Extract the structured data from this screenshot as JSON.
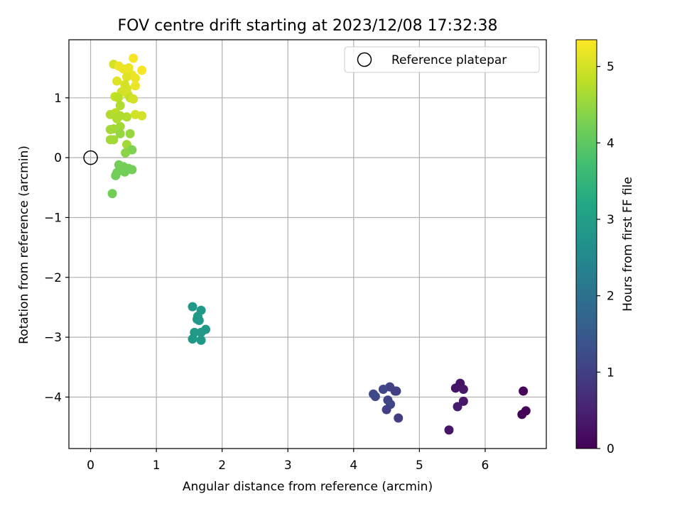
{
  "chart_data": {
    "type": "scatter",
    "title": "FOV centre drift starting at 2023/12/08 17:32:38",
    "xlabel": "Angular distance from reference (arcmin)",
    "ylabel": "Rotation from reference (arcmin)",
    "xlim": [
      -0.33,
      6.93
    ],
    "ylim": [
      -4.86,
      1.97
    ],
    "xticks": [
      0,
      1,
      2,
      3,
      4,
      5,
      6
    ],
    "yticks": [
      -4,
      -3,
      -2,
      -1,
      0,
      1
    ],
    "grid": true,
    "legend": {
      "placement": "top-right",
      "entries": [
        "Reference platepar"
      ]
    },
    "reference_point": {
      "x": 0,
      "y": 0
    },
    "colorbar": {
      "label": "Hours from first FF file",
      "range": [
        0,
        5.35
      ],
      "ticks": [
        0,
        1,
        2,
        3,
        4,
        5
      ],
      "colormap": "viridis"
    },
    "series": [
      {
        "points": [
          {
            "x": 6.58,
            "y": -3.9,
            "c": 0.05
          },
          {
            "x": 6.62,
            "y": -4.23,
            "c": 0.08
          },
          {
            "x": 6.56,
            "y": -4.29,
            "c": 0.03
          },
          {
            "x": 5.62,
            "y": -3.77,
            "c": 0.3
          },
          {
            "x": 5.55,
            "y": -3.85,
            "c": 0.3
          },
          {
            "x": 5.67,
            "y": -3.87,
            "c": 0.35
          },
          {
            "x": 5.67,
            "y": -4.07,
            "c": 0.35
          },
          {
            "x": 5.58,
            "y": -4.16,
            "c": 0.4
          },
          {
            "x": 5.45,
            "y": -4.55,
            "c": 0.3
          },
          {
            "x": 4.3,
            "y": -3.95,
            "c": 1.15
          },
          {
            "x": 4.33,
            "y": -3.99,
            "c": 1.15
          },
          {
            "x": 4.45,
            "y": -3.87,
            "c": 1.1
          },
          {
            "x": 4.55,
            "y": -3.83,
            "c": 1.05
          },
          {
            "x": 4.63,
            "y": -3.9,
            "c": 1.0
          },
          {
            "x": 4.65,
            "y": -3.9,
            "c": 1.0
          },
          {
            "x": 4.52,
            "y": -4.05,
            "c": 1.05
          },
          {
            "x": 4.56,
            "y": -4.12,
            "c": 1.1
          },
          {
            "x": 4.5,
            "y": -4.21,
            "c": 1.0
          },
          {
            "x": 4.68,
            "y": -4.35,
            "c": 0.95
          },
          {
            "x": 1.55,
            "y": -2.49,
            "c": 2.85
          },
          {
            "x": 1.68,
            "y": -2.55,
            "c": 2.85
          },
          {
            "x": 1.63,
            "y": -2.65,
            "c": 2.85
          },
          {
            "x": 1.62,
            "y": -2.7,
            "c": 2.85
          },
          {
            "x": 1.65,
            "y": -2.72,
            "c": 2.85
          },
          {
            "x": 1.75,
            "y": -2.87,
            "c": 2.85
          },
          {
            "x": 1.58,
            "y": -2.92,
            "c": 2.85
          },
          {
            "x": 1.68,
            "y": -2.92,
            "c": 2.85
          },
          {
            "x": 1.55,
            "y": -3.03,
            "c": 2.85
          },
          {
            "x": 1.68,
            "y": -3.05,
            "c": 2.85
          },
          {
            "x": 0.35,
            "y": 1.56,
            "c": 5.0
          },
          {
            "x": 0.43,
            "y": 1.53,
            "c": 5.2
          },
          {
            "x": 0.5,
            "y": 1.48,
            "c": 5.2
          },
          {
            "x": 0.58,
            "y": 1.5,
            "c": 5.2
          },
          {
            "x": 0.65,
            "y": 1.66,
            "c": 5.3
          },
          {
            "x": 0.78,
            "y": 1.46,
            "c": 5.3
          },
          {
            "x": 0.63,
            "y": 1.38,
            "c": 5.2
          },
          {
            "x": 0.55,
            "y": 1.35,
            "c": 5.1
          },
          {
            "x": 0.68,
            "y": 1.33,
            "c": 5.2
          },
          {
            "x": 0.4,
            "y": 1.28,
            "c": 5.1
          },
          {
            "x": 0.52,
            "y": 1.22,
            "c": 5.0
          },
          {
            "x": 0.68,
            "y": 1.2,
            "c": 5.2
          },
          {
            "x": 0.55,
            "y": 1.15,
            "c": 5.0
          },
          {
            "x": 0.47,
            "y": 1.1,
            "c": 5.0
          },
          {
            "x": 0.57,
            "y": 1.05,
            "c": 5.0
          },
          {
            "x": 0.37,
            "y": 1.02,
            "c": 4.9
          },
          {
            "x": 0.42,
            "y": 1.0,
            "c": 4.8
          },
          {
            "x": 0.6,
            "y": 1.0,
            "c": 4.9
          },
          {
            "x": 0.65,
            "y": 0.98,
            "c": 5.0
          },
          {
            "x": 0.45,
            "y": 0.87,
            "c": 4.7
          },
          {
            "x": 0.38,
            "y": 0.75,
            "c": 4.8
          },
          {
            "x": 0.3,
            "y": 0.72,
            "c": 4.7
          },
          {
            "x": 0.45,
            "y": 0.7,
            "c": 4.7
          },
          {
            "x": 0.55,
            "y": 0.68,
            "c": 4.7
          },
          {
            "x": 0.68,
            "y": 0.72,
            "c": 5.0
          },
          {
            "x": 0.78,
            "y": 0.7,
            "c": 5.0
          },
          {
            "x": 0.4,
            "y": 0.65,
            "c": 4.7
          },
          {
            "x": 0.45,
            "y": 0.52,
            "c": 4.6
          },
          {
            "x": 0.3,
            "y": 0.47,
            "c": 4.6
          },
          {
            "x": 0.35,
            "y": 0.48,
            "c": 4.6
          },
          {
            "x": 0.45,
            "y": 0.4,
            "c": 4.5
          },
          {
            "x": 0.6,
            "y": 0.4,
            "c": 4.5
          },
          {
            "x": 0.3,
            "y": 0.3,
            "c": 4.6
          },
          {
            "x": 0.35,
            "y": 0.3,
            "c": 4.6
          },
          {
            "x": 0.55,
            "y": 0.22,
            "c": 4.6
          },
          {
            "x": 0.63,
            "y": 0.13,
            "c": 4.3
          },
          {
            "x": 0.53,
            "y": 0.08,
            "c": 4.4
          },
          {
            "x": 0.43,
            "y": -0.12,
            "c": 4.2
          },
          {
            "x": 0.5,
            "y": -0.15,
            "c": 4.2
          },
          {
            "x": 0.58,
            "y": -0.18,
            "c": 4.2
          },
          {
            "x": 0.48,
            "y": -0.2,
            "c": 4.2
          },
          {
            "x": 0.52,
            "y": -0.24,
            "c": 4.2
          },
          {
            "x": 0.63,
            "y": -0.2,
            "c": 4.2
          },
          {
            "x": 0.4,
            "y": -0.25,
            "c": 4.2
          },
          {
            "x": 0.38,
            "y": -0.3,
            "c": 4.2
          },
          {
            "x": 0.33,
            "y": -0.6,
            "c": 4.2
          }
        ]
      }
    ]
  }
}
